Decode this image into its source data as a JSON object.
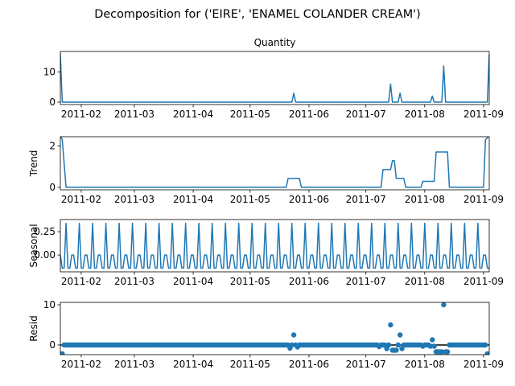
{
  "figure": {
    "suptitle": "Decomposition for ('EIRE', 'ENAMEL COLANDER CREAM')",
    "line_color": "#1f77b4",
    "background": "#ffffff"
  },
  "x_tick_labels": [
    "2011-02",
    "2011-03",
    "2011-04",
    "2011-05",
    "2011-06",
    "2011-07",
    "2011-08",
    "2011-09"
  ],
  "chart_data": [
    {
      "type": "line",
      "title": "Quantity",
      "ylabel": "",
      "xlim": [
        "2011-01-21",
        "2011-09-04"
      ],
      "ylim": [
        -0.8,
        16.8
      ],
      "yticks": [
        0,
        10
      ],
      "series": [
        {
          "points": [
            [
              "2011-01-21",
              16
            ],
            [
              "2011-01-22",
              0
            ],
            [
              "2011-05-23",
              0
            ],
            [
              "2011-05-24",
              3
            ],
            [
              "2011-05-25",
              0
            ],
            [
              "2011-07-13",
              0
            ],
            [
              "2011-07-14",
              6
            ],
            [
              "2011-07-15",
              0
            ],
            [
              "2011-07-18",
              0
            ],
            [
              "2011-07-19",
              3
            ],
            [
              "2011-07-20",
              0
            ],
            [
              "2011-08-04",
              0
            ],
            [
              "2011-08-05",
              2
            ],
            [
              "2011-08-06",
              0
            ],
            [
              "2011-08-10",
              0
            ],
            [
              "2011-08-11",
              12
            ],
            [
              "2011-08-12",
              0
            ],
            [
              "2011-09-03",
              0
            ],
            [
              "2011-09-04",
              16
            ]
          ]
        }
      ]
    },
    {
      "type": "line",
      "title": "",
      "ylabel": "Trend",
      "xlim": [
        "2011-01-21",
        "2011-09-04"
      ],
      "ylim": [
        -0.12,
        2.45
      ],
      "yticks": [
        0,
        2
      ],
      "series": [
        {
          "points": [
            [
              "2011-01-21",
              2.5
            ],
            [
              "2011-01-22",
              2.3
            ],
            [
              "2011-01-24",
              0
            ],
            [
              "2011-05-20",
              0
            ],
            [
              "2011-05-21",
              0.43
            ],
            [
              "2011-05-27",
              0.43
            ],
            [
              "2011-05-28",
              0
            ],
            [
              "2011-07-09",
              0
            ],
            [
              "2011-07-10",
              0.86
            ],
            [
              "2011-07-14",
              0.86
            ],
            [
              "2011-07-15",
              1.29
            ],
            [
              "2011-07-16",
              1.29
            ],
            [
              "2011-07-17",
              0.43
            ],
            [
              "2011-07-21",
              0.43
            ],
            [
              "2011-07-22",
              0
            ],
            [
              "2011-07-30",
              0
            ],
            [
              "2011-07-31",
              0.29
            ],
            [
              "2011-08-06",
              0.29
            ],
            [
              "2011-08-07",
              1.71
            ],
            [
              "2011-08-13",
              1.71
            ],
            [
              "2011-08-14",
              0
            ],
            [
              "2011-09-01",
              0
            ],
            [
              "2011-09-02",
              2.3
            ],
            [
              "2011-09-04",
              2.5
            ]
          ]
        }
      ]
    },
    {
      "type": "line",
      "title": "",
      "ylabel": "Seasonal",
      "xlim": [
        "2011-01-21",
        "2011-09-04"
      ],
      "ylim": [
        -0.18,
        0.38
      ],
      "yticks": [
        0.25,
        0.0
      ],
      "ytick_labels": [
        "0.25",
        "0.00"
      ],
      "period_days": 7,
      "weekly_pattern": [
        0.34,
        -0.14,
        -0.14,
        0.0,
        0.0,
        -0.14,
        -0.14
      ],
      "pattern_start": "2011-01-24",
      "series_start": "2011-01-21",
      "series_end": "2011-09-04"
    },
    {
      "type": "scatter",
      "title": "",
      "ylabel": "Resid",
      "xlim": [
        "2011-01-21",
        "2011-09-04"
      ],
      "ylim": [
        -2.4,
        10.6
      ],
      "yticks": [
        0,
        10
      ],
      "zero_line": true,
      "baseline_start": "2011-01-22",
      "baseline_end": "2011-09-03",
      "baseline_value": 0.0,
      "points": [
        [
          "2011-01-22",
          -2.2
        ],
        [
          "2011-05-22",
          -0.8
        ],
        [
          "2011-05-24",
          2.5
        ],
        [
          "2011-05-26",
          -0.5
        ],
        [
          "2011-07-08",
          -0.4
        ],
        [
          "2011-07-12",
          -0.9
        ],
        [
          "2011-07-14",
          5.0
        ],
        [
          "2011-07-15",
          -1.3
        ],
        [
          "2011-07-16",
          -1.3
        ],
        [
          "2011-07-17",
          -1.3
        ],
        [
          "2011-07-19",
          2.5
        ],
        [
          "2011-07-20",
          -0.9
        ],
        [
          "2011-07-31",
          -0.3
        ],
        [
          "2011-08-04",
          -0.3
        ],
        [
          "2011-08-05",
          1.3
        ],
        [
          "2011-08-06",
          -0.3
        ],
        [
          "2011-08-07",
          -1.7
        ],
        [
          "2011-08-08",
          -1.7
        ],
        [
          "2011-08-09",
          -1.7
        ],
        [
          "2011-08-10",
          -1.7
        ],
        [
          "2011-08-11",
          10.0
        ],
        [
          "2011-08-12",
          -1.7
        ],
        [
          "2011-08-13",
          -1.7
        ],
        [
          "2011-09-03",
          -2.2
        ]
      ]
    }
  ]
}
